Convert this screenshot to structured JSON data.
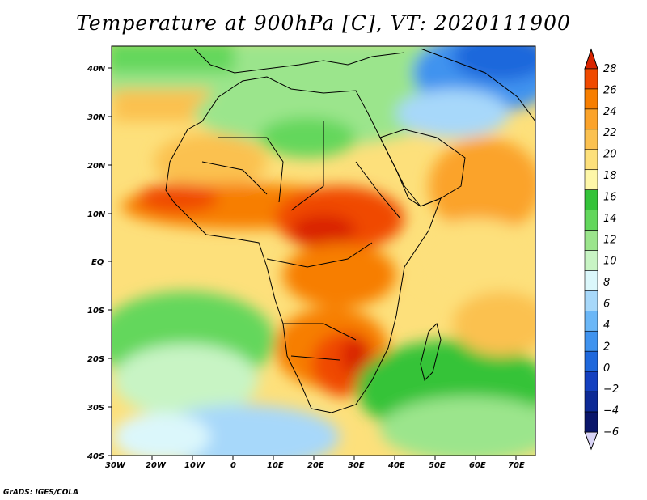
{
  "title": "Temperature at 900hPa [C], VT: 2020111900",
  "credit": "GrADS: IGES/COLA",
  "map": {
    "lon_range": [
      -30,
      75
    ],
    "lat_range": [
      -40,
      45
    ],
    "lon_ticks": [
      "30W",
      "20W",
      "10W",
      "0",
      "10E",
      "20E",
      "30E",
      "40E",
      "50E",
      "60E",
      "70E"
    ],
    "lat_ticks": [
      "40N",
      "30N",
      "20N",
      "10N",
      "EQ",
      "10S",
      "20S",
      "30S",
      "40S"
    ],
    "regions": [
      {
        "name": "sahel-hot-band",
        "value": 24
      },
      {
        "name": "central-africa-hot",
        "value": 26
      },
      {
        "name": "southern-africa-hot",
        "value": 27
      },
      {
        "name": "sahara-mild",
        "value": 20
      },
      {
        "name": "north-africa-cool",
        "value": 13
      },
      {
        "name": "asia-cold",
        "value": 2
      },
      {
        "name": "south-atlantic-cool",
        "value": 10
      },
      {
        "name": "indian-ocean-mild",
        "value": 19
      }
    ]
  },
  "colorbar": {
    "labels": [
      "28",
      "26",
      "24",
      "22",
      "20",
      "18",
      "16",
      "14",
      "12",
      "10",
      "8",
      "6",
      "4",
      "2",
      "0",
      "−2",
      "−4",
      "−6"
    ],
    "colors": [
      "#d92400",
      "#f04a00",
      "#f77e00",
      "#fba32a",
      "#fbc150",
      "#fde07b",
      "#fef7a8",
      "#34c339",
      "#63d75c",
      "#9be58c",
      "#c8f4c4",
      "#dbf7fb",
      "#a7d8fa",
      "#6bb7f7",
      "#3f93ef",
      "#1f68dc",
      "#1440c0",
      "#0d2a96",
      "#0a166b",
      "#d9d4f6"
    ]
  }
}
